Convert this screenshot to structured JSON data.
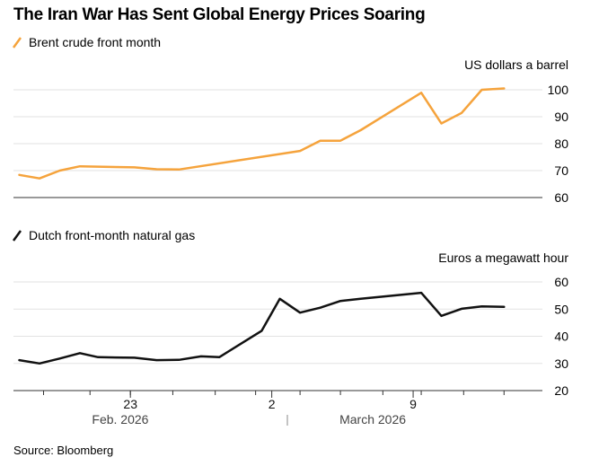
{
  "title": "The Iran War Has Sent Global Energy Prices Soaring",
  "source": "Source: Bloomberg",
  "colors": {
    "brent": "#f5a33c",
    "gas": "#111111",
    "grid": "#e2e2e2",
    "axis": "#333333"
  },
  "x_ticks": [
    {
      "label": "23",
      "day": 23
    },
    {
      "label": "2",
      "day": 30
    },
    {
      "label": "9",
      "day": 37
    }
  ],
  "months": [
    {
      "label": "Feb. 2026",
      "center_day": 22.5
    },
    {
      "label": "March 2026",
      "center_day": 35
    }
  ],
  "chart_data": [
    {
      "type": "line",
      "title": "Brent crude front month",
      "ylabel": "US dollars a barrel",
      "ylim": [
        60,
        100
      ],
      "yticks": [
        60,
        70,
        80,
        90,
        100
      ],
      "xlim": [
        17.3,
        43.4
      ],
      "series": [
        {
          "name": "Brent crude front month",
          "x": [
            17.5,
            18.5,
            19.5,
            20.5,
            23.2,
            24.3,
            25.4,
            31.4,
            32.4,
            33.4,
            34.4,
            37.4,
            38.4,
            39.4,
            40.4,
            41.5
          ],
          "values": [
            68.4,
            67.1,
            70.0,
            71.6,
            71.2,
            70.5,
            70.4,
            77.3,
            81.1,
            81.1,
            85.0,
            98.9,
            87.5,
            91.4,
            100.0,
            100.5
          ]
        }
      ]
    },
    {
      "type": "line",
      "title": "Dutch front-month natural gas",
      "ylabel": "Euros a megawatt hour",
      "ylim": [
        20,
        60
      ],
      "yticks": [
        20,
        30,
        40,
        50,
        60
      ],
      "xlim": [
        17.3,
        43.4
      ],
      "series": [
        {
          "name": "Dutch front-month natural gas",
          "x": [
            17.5,
            18.5,
            19.5,
            20.5,
            21.4,
            23.2,
            24.3,
            25.4,
            26.5,
            27.4,
            29.5,
            30.4,
            31.4,
            32.4,
            33.4,
            34.4,
            37.4,
            38.4,
            39.4,
            40.4,
            41.5
          ],
          "values": [
            31.2,
            30.0,
            31.8,
            33.8,
            32.3,
            32.1,
            31.2,
            31.3,
            32.6,
            32.3,
            42.0,
            53.8,
            48.7,
            50.5,
            53.0,
            53.8,
            56.0,
            47.5,
            50.1,
            51.0,
            50.8
          ]
        }
      ]
    }
  ]
}
